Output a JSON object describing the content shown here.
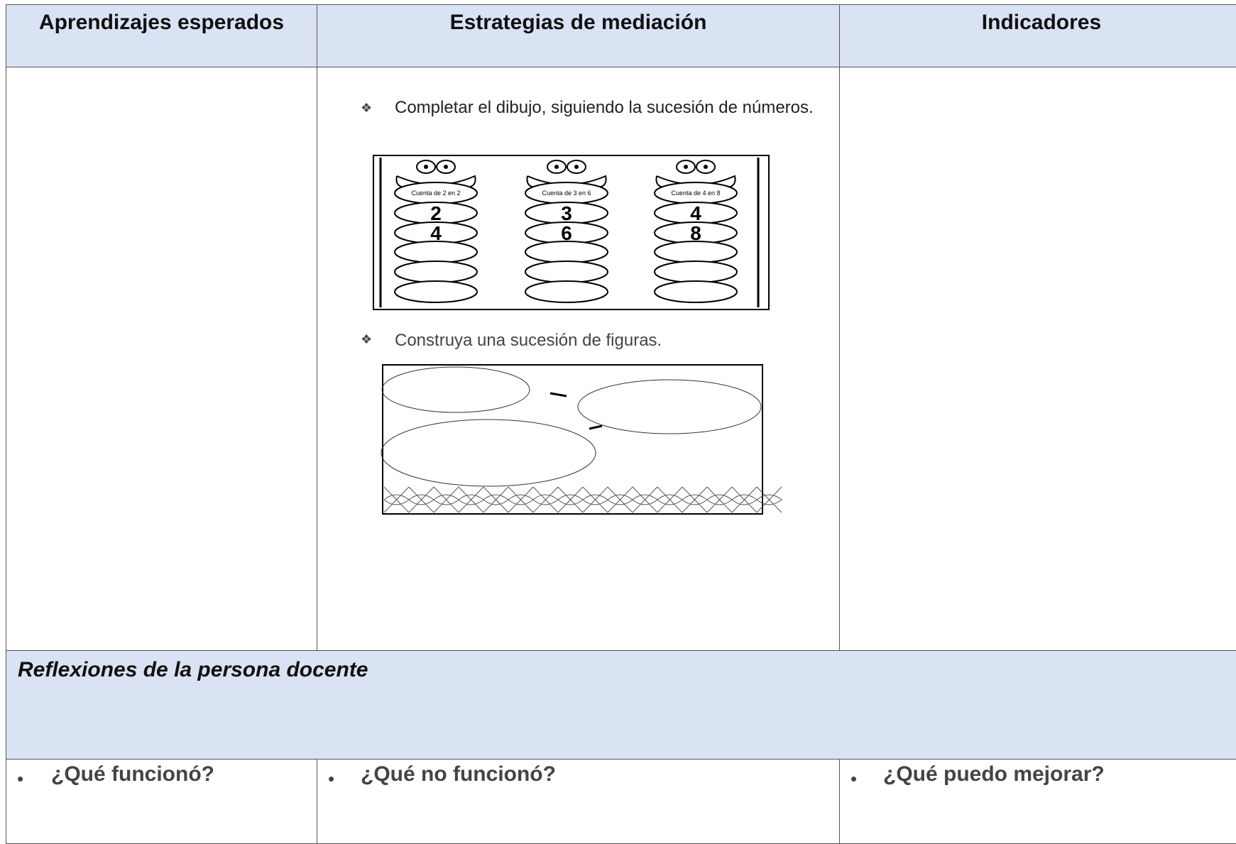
{
  "header": {
    "columns": [
      "Aprendizajes esperados",
      "Estrategias de mediación",
      "Indicadores"
    ]
  },
  "body": {
    "bullet": "❖",
    "items": [
      "Completar el dibujo, siguiendo la sucesión de números.",
      "Construya una sucesión de figuras."
    ],
    "worksheet": {
      "caterpillars": [
        {
          "label": "Cuenta de 2 en 2",
          "numbers": [
            "2",
            "4"
          ]
        },
        {
          "label": "Cuenta de 3 en 6",
          "numbers": [
            "3",
            "6"
          ]
        },
        {
          "label": "Cuenta de 4 en 8",
          "numbers": [
            "4",
            "8"
          ]
        }
      ]
    }
  },
  "reflections": {
    "title": "Reflexiones de la persona docente",
    "bullet": "•",
    "questions": [
      "¿Qué funcionó?",
      "¿Qué no funcionó?",
      "¿Qué puedo mejorar?"
    ]
  }
}
